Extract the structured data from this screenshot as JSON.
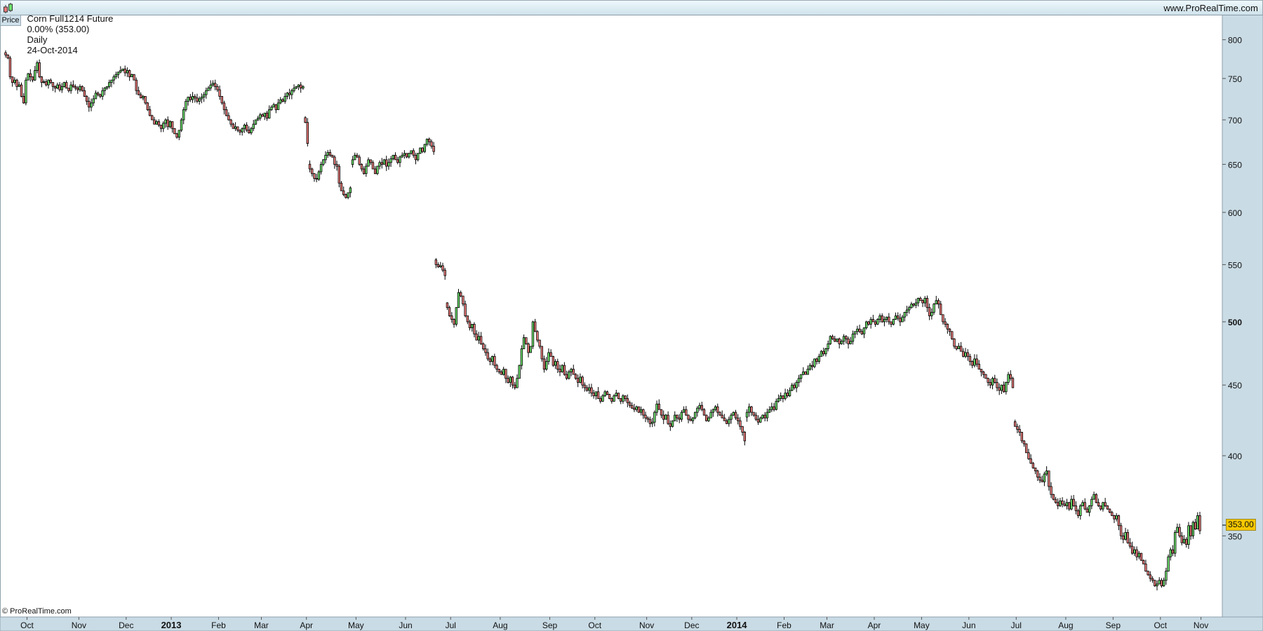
{
  "header": {
    "instrument": "Corn Full1214 Future",
    "change": "0.00% (353.00)",
    "period": "Daily",
    "date": "24-Oct-2014",
    "site": "www.ProRealTime.com"
  },
  "panel_tab": "Price",
  "copyright": "© ProRealTime.com",
  "last_price_label": "353.00",
  "colors": {
    "up": "#6ee46e",
    "down": "#ee7b7b",
    "axis_bg": "#c9dbe5",
    "last_price_bg": "#f6c700"
  },
  "chart_data": {
    "type": "candlestick",
    "y_scale": "log",
    "ylim": [
      318,
      810
    ],
    "grid": false,
    "y_ticks": [
      800,
      750,
      700,
      650,
      600,
      550,
      500,
      450,
      400,
      350
    ],
    "y_tick_bold": [
      500
    ],
    "last_price": 353.0,
    "months": [
      {
        "label": "",
        "close": [
          780,
          776,
          752,
          745,
          748,
          740,
          742,
          728,
          720,
          748
        ]
      },
      {
        "label": "Oct",
        "close": [
          756,
          752,
          748,
          760,
          770,
          752,
          745,
          746,
          742,
          748,
          745,
          740,
          738,
          742,
          736,
          740,
          745,
          738,
          735,
          742,
          740,
          738,
          736
        ]
      },
      {
        "label": "Nov",
        "close": [
          740,
          735,
          728,
          722,
          715,
          720,
          725,
          732,
          730,
          728,
          735,
          738,
          740,
          745,
          748,
          752,
          755,
          758,
          760,
          762,
          757
        ]
      },
      {
        "label": "Dec",
        "close": [
          760,
          752,
          755,
          748,
          735,
          730,
          726,
          728,
          720,
          712,
          705,
          700,
          695,
          698,
          694,
          690,
          696,
          700,
          692,
          698
        ]
      },
      {
        "label": "2013",
        "bold": true,
        "close": [
          690,
          684,
          680,
          688,
          700,
          712,
          722,
          727,
          724,
          728,
          726,
          722,
          725,
          727,
          730,
          735,
          738,
          742,
          744,
          740,
          736
        ]
      },
      {
        "label": "Feb",
        "close": [
          728,
          720,
          712,
          705,
          700,
          695,
          690,
          692,
          688,
          686,
          690,
          694,
          688,
          685,
          690,
          695,
          700,
          702,
          706
        ]
      },
      {
        "label": "Mar",
        "close": [
          704,
          708,
          702,
          712,
          715,
          718,
          712,
          720,
          724,
          722,
          728,
          732,
          730,
          735,
          738,
          740,
          742,
          738,
          740,
          697
        ]
      },
      {
        "label": "Apr",
        "close": [
          673,
          645,
          640,
          635,
          634,
          642,
          650,
          655,
          660,
          663,
          660,
          658,
          650,
          648,
          630,
          622,
          618,
          615,
          620,
          625,
          655,
          660
        ]
      },
      {
        "label": "May",
        "close": [
          658,
          650,
          645,
          640,
          648,
          655,
          652,
          645,
          640,
          648,
          652,
          650,
          655,
          648,
          652,
          656,
          660,
          655,
          652,
          658,
          660,
          662
        ]
      },
      {
        "label": "Jun",
        "close": [
          658,
          662,
          665,
          660,
          655,
          662,
          668,
          664,
          672,
          678,
          675,
          670,
          664,
          550,
          548,
          549,
          545,
          540,
          512,
          505
        ]
      },
      {
        "label": "Jul",
        "close": [
          502,
          498,
          512,
          525,
          522,
          515,
          505,
          500,
          495,
          498,
          490,
          485,
          488,
          482,
          478,
          475,
          470,
          468,
          472,
          465,
          462,
          460
        ]
      },
      {
        "label": "Aug",
        "close": [
          458,
          462,
          455,
          452,
          456,
          450,
          448,
          455,
          465,
          478,
          487,
          482,
          475,
          480,
          500,
          492,
          485,
          480,
          470,
          462,
          468,
          475
        ]
      },
      {
        "label": "Sep",
        "close": [
          472,
          465,
          468,
          462,
          460,
          465,
          458,
          455,
          460,
          462,
          458,
          455,
          452,
          456,
          450,
          448,
          446,
          448,
          444,
          442
        ]
      },
      {
        "label": "Oct",
        "close": [
          445,
          440,
          438,
          442,
          445,
          443,
          440,
          438,
          442,
          444,
          440,
          438,
          442,
          440,
          437,
          435,
          433,
          432,
          434,
          430,
          432,
          428,
          426
        ]
      },
      {
        "label": "Nov",
        "close": [
          425,
          422,
          423,
          430,
          436,
          432,
          428,
          425,
          428,
          422,
          420,
          424,
          428,
          426,
          425,
          430,
          432,
          428,
          425,
          424
        ]
      },
      {
        "label": "Dec",
        "close": [
          426,
          430,
          433,
          435,
          432,
          428,
          424,
          426,
          430,
          432,
          434,
          430,
          428,
          426,
          424,
          422,
          425,
          428,
          430,
          426
        ]
      },
      {
        "label": "2014",
        "bold": true,
        "close": [
          424,
          420,
          416,
          410,
          430,
          434,
          430,
          428,
          425,
          423,
          426,
          428,
          426,
          430,
          432,
          434,
          432,
          438,
          440,
          442,
          440
        ]
      },
      {
        "label": "Feb",
        "close": [
          444,
          442,
          446,
          450,
          448,
          452,
          455,
          458,
          460,
          458,
          462,
          465,
          464,
          470,
          468,
          472,
          476,
          474,
          478
        ]
      },
      {
        "label": "Mar",
        "close": [
          482,
          488,
          486,
          484,
          486,
          482,
          484,
          488,
          486,
          482,
          484,
          490,
          492,
          494,
          492,
          490,
          495,
          500,
          498,
          502,
          500
        ]
      },
      {
        "label": "Apr",
        "close": [
          498,
          502,
          505,
          500,
          502,
          504,
          500,
          498,
          502,
          505,
          503,
          500,
          504,
          508,
          510,
          512,
          515,
          514,
          516,
          520,
          518
        ]
      },
      {
        "label": "May",
        "close": [
          516,
          520,
          512,
          505,
          508,
          515,
          518,
          515,
          506,
          500,
          498,
          494,
          492,
          486,
          480,
          478,
          480,
          476,
          472,
          475,
          472
        ]
      },
      {
        "label": "Jun",
        "close": [
          468,
          465,
          470,
          466,
          462,
          460,
          458,
          455,
          452,
          450,
          455,
          452,
          448,
          446,
          450,
          445,
          452,
          458,
          455,
          448,
          420
        ]
      },
      {
        "label": "Jul",
        "close": [
          418,
          416,
          410,
          408,
          402,
          398,
          395,
          392,
          390,
          386,
          384,
          383,
          388,
          390,
          380,
          375,
          372,
          370,
          368,
          371,
          369,
          368
        ]
      },
      {
        "label": "Aug",
        "close": [
          370,
          366,
          372,
          368,
          365,
          362,
          368,
          370,
          366,
          364,
          368,
          372,
          375,
          370,
          368,
          366,
          370,
          368,
          366,
          364,
          362
        ]
      },
      {
        "label": "Sep",
        "close": [
          360,
          362,
          356,
          350,
          348,
          352,
          346,
          344,
          340,
          342,
          338,
          340,
          336,
          334,
          330,
          328,
          326,
          325,
          322,
          323,
          325
        ]
      },
      {
        "label": "Oct",
        "close": [
          322,
          325,
          330,
          338,
          342,
          340,
          352,
          355,
          350,
          346,
          348,
          345,
          356,
          350,
          358,
          354,
          362,
          353
        ]
      },
      {
        "label": "Nov",
        "close": []
      }
    ]
  }
}
